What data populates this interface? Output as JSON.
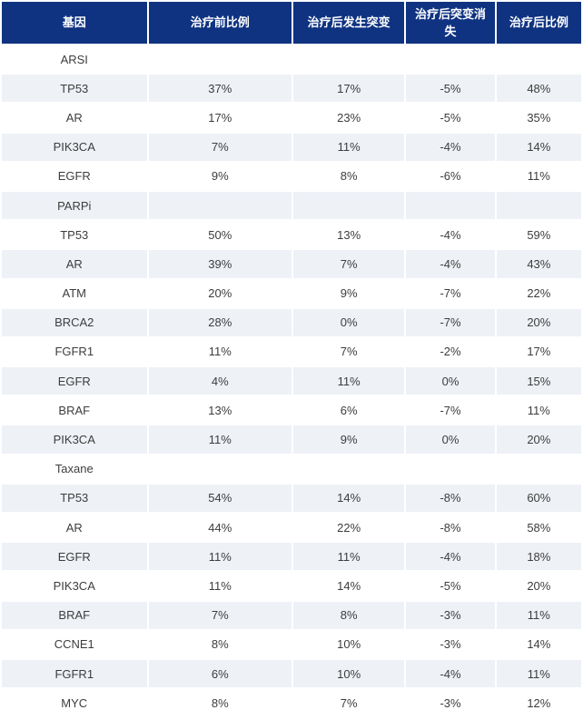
{
  "colors": {
    "header_bg": "#0f3381",
    "header_text": "#ffffff",
    "stripe_bg": "#eef1f6",
    "body_text": "#3d3d3d"
  },
  "table": {
    "columns": [
      "基因",
      "治疗前比例",
      "治疗后发生突变",
      "治疗后突变消失",
      "治疗后比例"
    ],
    "rows": [
      {
        "type": "group",
        "gene": "ARSI",
        "values": [
          "",
          "",
          "",
          ""
        ]
      },
      {
        "type": "data",
        "gene": "TP53",
        "values": [
          "37%",
          "17%",
          "-5%",
          "48%"
        ]
      },
      {
        "type": "data",
        "gene": "AR",
        "values": [
          "17%",
          "23%",
          "-5%",
          "35%"
        ]
      },
      {
        "type": "data",
        "gene": "PIK3CA",
        "values": [
          "7%",
          "11%",
          "-4%",
          "14%"
        ]
      },
      {
        "type": "data",
        "gene": "EGFR",
        "values": [
          "9%",
          "8%",
          "-6%",
          "11%"
        ]
      },
      {
        "type": "group",
        "gene": "PARPi",
        "values": [
          "",
          "",
          "",
          ""
        ]
      },
      {
        "type": "data",
        "gene": "TP53",
        "values": [
          "50%",
          "13%",
          "-4%",
          "59%"
        ]
      },
      {
        "type": "data",
        "gene": "AR",
        "values": [
          "39%",
          "7%",
          "-4%",
          "43%"
        ]
      },
      {
        "type": "data",
        "gene": "ATM",
        "values": [
          "20%",
          "9%",
          "-7%",
          "22%"
        ]
      },
      {
        "type": "data",
        "gene": "BRCA2",
        "values": [
          "28%",
          "0%",
          "-7%",
          "20%"
        ]
      },
      {
        "type": "data",
        "gene": "FGFR1",
        "values": [
          "11%",
          "7%",
          "-2%",
          "17%"
        ]
      },
      {
        "type": "data",
        "gene": "EGFR",
        "values": [
          "4%",
          "11%",
          "0%",
          "15%"
        ]
      },
      {
        "type": "data",
        "gene": "BRAF",
        "values": [
          "13%",
          "6%",
          "-7%",
          "11%"
        ]
      },
      {
        "type": "data",
        "gene": "PIK3CA",
        "values": [
          "11%",
          "9%",
          "0%",
          "20%"
        ]
      },
      {
        "type": "group",
        "gene": "Taxane",
        "values": [
          "",
          "",
          "",
          ""
        ]
      },
      {
        "type": "data",
        "gene": "TP53",
        "values": [
          "54%",
          "14%",
          "-8%",
          "60%"
        ]
      },
      {
        "type": "data",
        "gene": "AR",
        "values": [
          "44%",
          "22%",
          "-8%",
          "58%"
        ]
      },
      {
        "type": "data",
        "gene": "EGFR",
        "values": [
          "11%",
          "11%",
          "-4%",
          "18%"
        ]
      },
      {
        "type": "data",
        "gene": "PIK3CA",
        "values": [
          "11%",
          "14%",
          "-5%",
          "20%"
        ]
      },
      {
        "type": "data",
        "gene": "BRAF",
        "values": [
          "7%",
          "8%",
          "-3%",
          "11%"
        ]
      },
      {
        "type": "data",
        "gene": "CCNE1",
        "values": [
          "8%",
          "10%",
          "-3%",
          "14%"
        ]
      },
      {
        "type": "data",
        "gene": "FGFR1",
        "values": [
          "6%",
          "10%",
          "-4%",
          "11%"
        ]
      },
      {
        "type": "data",
        "gene": "MYC",
        "values": [
          "8%",
          "7%",
          "-3%",
          "12%"
        ]
      }
    ]
  }
}
